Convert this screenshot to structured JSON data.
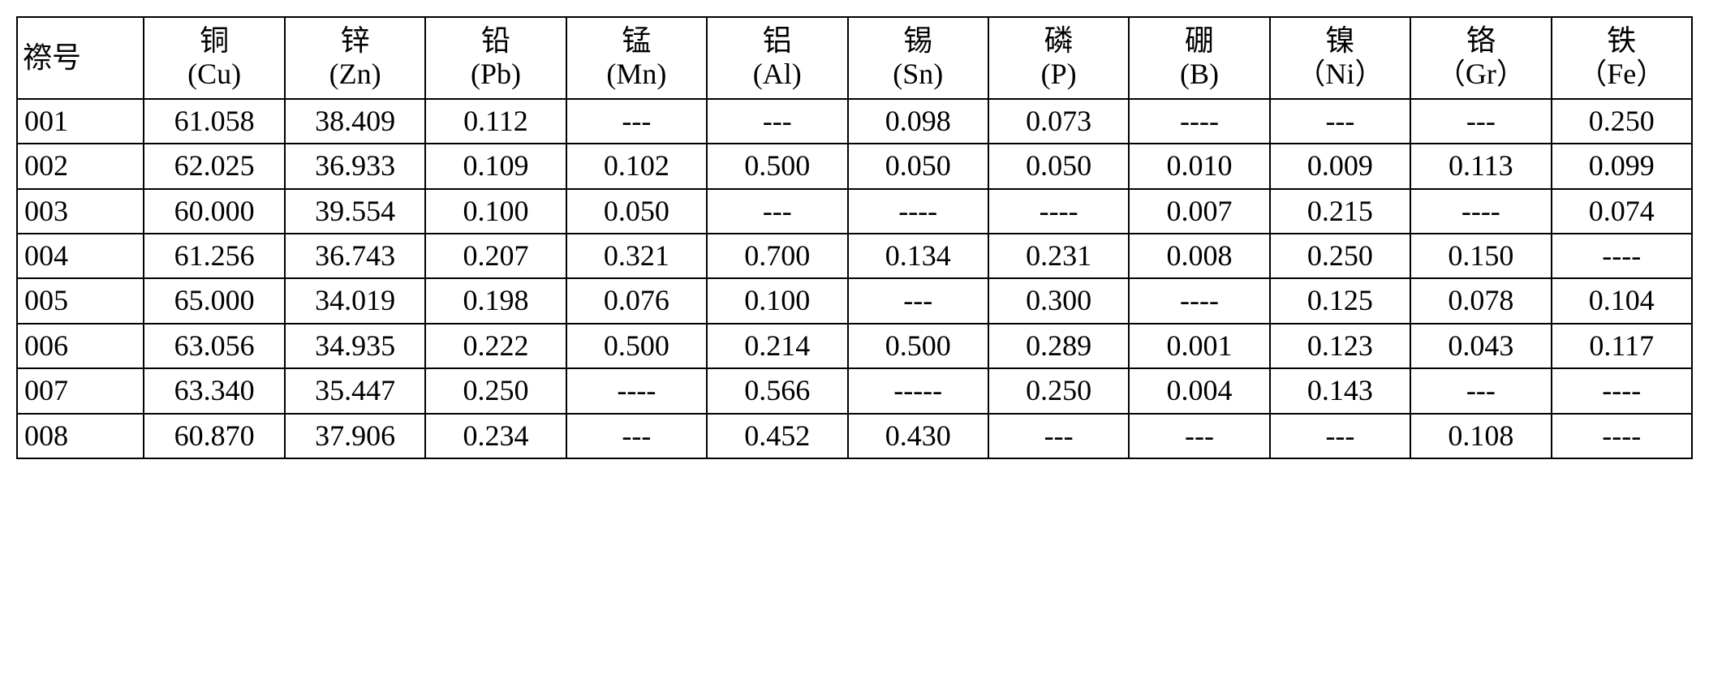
{
  "table": {
    "type": "table",
    "border_color": "#000000",
    "background_color": "#ffffff",
    "text_color": "#000000",
    "font_family": "SimSun, 宋体, Times New Roman, serif",
    "font_size_pt": 27,
    "id_header": "䄞号",
    "columns": [
      {
        "name_cn": "铜",
        "symbol": "(Cu)"
      },
      {
        "name_cn": "锌",
        "symbol": "(Zn)"
      },
      {
        "name_cn": "铅",
        "symbol": "(Pb)"
      },
      {
        "name_cn": "锰",
        "symbol": "(Mn)"
      },
      {
        "name_cn": "铝",
        "symbol": "(Al)"
      },
      {
        "name_cn": "锡",
        "symbol": "(Sn)"
      },
      {
        "name_cn": "磷",
        "symbol": "(P)"
      },
      {
        "name_cn": "硼",
        "symbol": "(B)"
      },
      {
        "name_cn": "镍",
        "symbol": "（Ni）"
      },
      {
        "name_cn": "铬",
        "symbol": "（Gr）"
      },
      {
        "name_cn": "铁",
        "symbol": "（Fe）"
      }
    ],
    "rows": [
      {
        "id": "001",
        "cells": [
          "61.058",
          "38.409",
          "0.112",
          "---",
          "---",
          "0.098",
          "0.073",
          "----",
          "---",
          "---",
          "0.250"
        ]
      },
      {
        "id": "002",
        "cells": [
          "62.025",
          "36.933",
          "0.109",
          "0.102",
          "0.500",
          "0.050",
          "0.050",
          "0.010",
          "0.009",
          "0.113",
          "0.099"
        ]
      },
      {
        "id": "003",
        "cells": [
          "60.000",
          "39.554",
          "0.100",
          "0.050",
          "---",
          "----",
          "----",
          "0.007",
          "0.215",
          "----",
          "0.074"
        ]
      },
      {
        "id": "004",
        "cells": [
          "61.256",
          "36.743",
          "0.207",
          "0.321",
          "0.700",
          "0.134",
          "0.231",
          "0.008",
          "0.250",
          "0.150",
          "----"
        ]
      },
      {
        "id": "005",
        "cells": [
          "65.000",
          "34.019",
          "0.198",
          "0.076",
          "0.100",
          "---",
          "0.300",
          "----",
          "0.125",
          "0.078",
          "0.104"
        ]
      },
      {
        "id": "006",
        "cells": [
          "63.056",
          "34.935",
          "0.222",
          "0.500",
          "0.214",
          "0.500",
          "0.289",
          "0.001",
          "0.123",
          "0.043",
          "0.117"
        ]
      },
      {
        "id": "007",
        "cells": [
          "63.340",
          "35.447",
          "0.250",
          "----",
          "0.566",
          "-----",
          "0.250",
          "0.004",
          "0.143",
          "---",
          "----"
        ]
      },
      {
        "id": "008",
        "cells": [
          "60.870",
          "37.906",
          "0.234",
          "---",
          "0.452",
          "0.430",
          "---",
          "---",
          "---",
          "0.108",
          "----"
        ]
      }
    ]
  }
}
